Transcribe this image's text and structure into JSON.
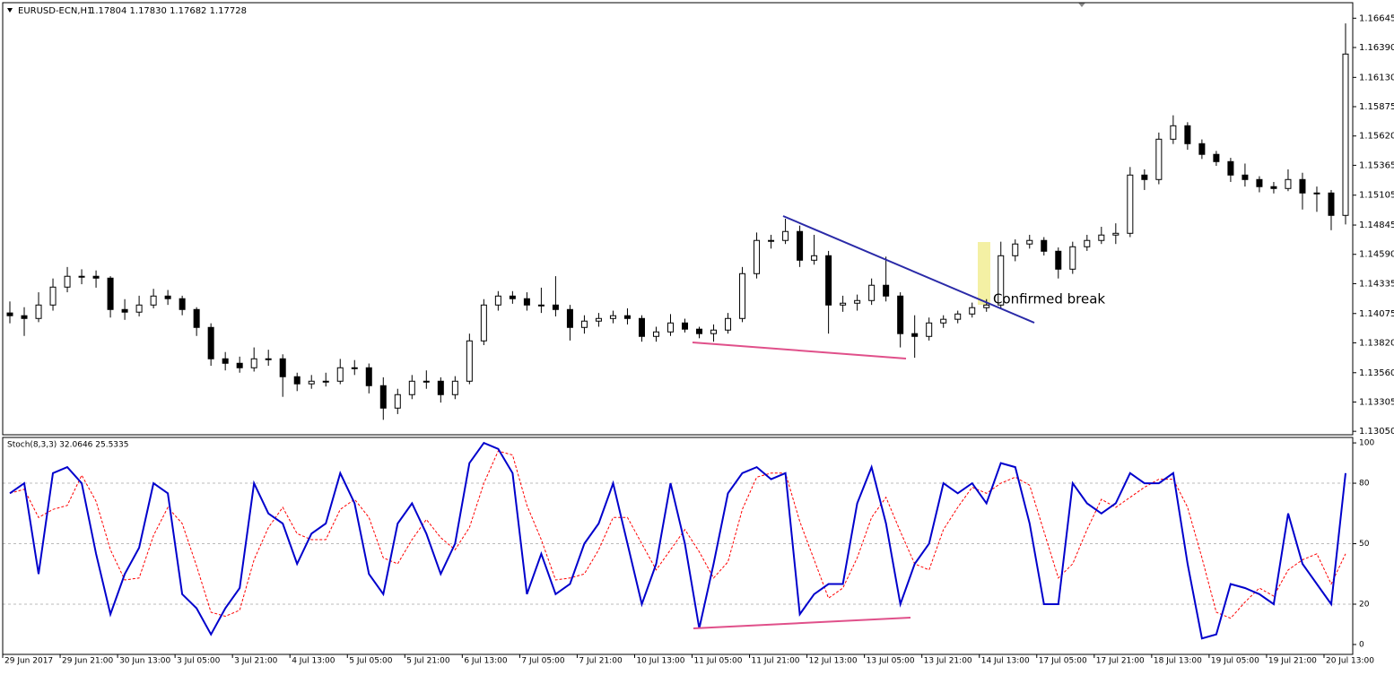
{
  "chart_data": [
    {
      "type": "candlestick",
      "title": "EURUSD-ECN,H1",
      "subtitle": "1.17804 1.17830 1.17682 1.17728",
      "annotation": "Confirmed break",
      "xlim": [
        0,
        94
      ],
      "ylim": [
        1.1302,
        1.1678
      ],
      "yticks": [
        1.16645,
        {
          "value": 1.1639,
          "label": "1.16390"
        },
        {
          "value": 1.1613,
          "label": "1.16130"
        },
        1.15875,
        {
          "value": 1.1562,
          "label": "1.15620"
        },
        1.15365,
        1.15105,
        1.14845,
        {
          "value": 1.1459,
          "label": "1.14590"
        },
        1.14335,
        1.14075,
        {
          "value": 1.1382,
          "label": "1.13820"
        },
        {
          "value": 1.1356,
          "label": "1.13560"
        },
        1.13305,
        {
          "value": 1.1305,
          "label": "1.13050"
        }
      ],
      "up_color": "#ffffff",
      "down_color": "#000000",
      "color": "#000000",
      "ohlc": [
        [
          1.1408,
          1.1418,
          1.1399,
          1.14056
        ],
        [
          1.14056,
          1.1413,
          1.1388,
          1.14032
        ],
        [
          1.14032,
          1.1426,
          1.14,
          1.14149
        ],
        [
          1.14149,
          1.1438,
          1.141,
          1.14305
        ],
        [
          1.14305,
          1.1448,
          1.1426,
          1.14399
        ],
        [
          1.14399,
          1.1446,
          1.1433,
          1.14399
        ],
        [
          1.14399,
          1.1445,
          1.143,
          1.14383
        ],
        [
          1.14383,
          1.144,
          1.1404,
          1.1411
        ],
        [
          1.1411,
          1.142,
          1.1402,
          1.14087
        ],
        [
          1.14087,
          1.1423,
          1.1405,
          1.14149
        ],
        [
          1.14149,
          1.1429,
          1.1412,
          1.14227
        ],
        [
          1.14227,
          1.1428,
          1.1415,
          1.14204
        ],
        [
          1.14204,
          1.1423,
          1.1406,
          1.1411
        ],
        [
          1.1411,
          1.1413,
          1.1388,
          1.13954
        ],
        [
          1.13954,
          1.1399,
          1.1362,
          1.13681
        ],
        [
          1.13681,
          1.1374,
          1.1358,
          1.13642
        ],
        [
          1.13642,
          1.137,
          1.1356,
          1.13603
        ],
        [
          1.13603,
          1.1378,
          1.1357,
          1.13681
        ],
        [
          1.13681,
          1.1376,
          1.1362,
          1.13681
        ],
        [
          1.13681,
          1.1372,
          1.1335,
          1.13525
        ],
        [
          1.13525,
          1.1356,
          1.134,
          1.13463
        ],
        [
          1.13463,
          1.1354,
          1.1342,
          1.13486
        ],
        [
          1.13486,
          1.1356,
          1.1344,
          1.13486
        ],
        [
          1.13486,
          1.1368,
          1.1346,
          1.13603
        ],
        [
          1.13603,
          1.1367,
          1.1354,
          1.13603
        ],
        [
          1.13603,
          1.1364,
          1.1338,
          1.13447
        ],
        [
          1.13447,
          1.1352,
          1.1315,
          1.13252
        ],
        [
          1.13252,
          1.1342,
          1.132,
          1.13369
        ],
        [
          1.13369,
          1.1354,
          1.1333,
          1.13486
        ],
        [
          1.13486,
          1.1358,
          1.1342,
          1.13486
        ],
        [
          1.13486,
          1.1352,
          1.133,
          1.13369
        ],
        [
          1.13369,
          1.1353,
          1.1333,
          1.13486
        ],
        [
          1.13486,
          1.139,
          1.1346,
          1.13837
        ],
        [
          1.13837,
          1.142,
          1.138,
          1.14149
        ],
        [
          1.14149,
          1.1427,
          1.141,
          1.14227
        ],
        [
          1.14227,
          1.1427,
          1.1416,
          1.14204
        ],
        [
          1.14204,
          1.1426,
          1.141,
          1.14149
        ],
        [
          1.14149,
          1.143,
          1.1408,
          1.14149
        ],
        [
          1.14149,
          1.144,
          1.1405,
          1.1411
        ],
        [
          1.1411,
          1.1415,
          1.1384,
          1.13954
        ],
        [
          1.13954,
          1.1406,
          1.139,
          1.14009
        ],
        [
          1.14009,
          1.1408,
          1.1396,
          1.14032
        ],
        [
          1.14032,
          1.141,
          1.1399,
          1.14056
        ],
        [
          1.14056,
          1.1412,
          1.1398,
          1.14032
        ],
        [
          1.14032,
          1.1406,
          1.1383,
          1.13876
        ],
        [
          1.13876,
          1.1396,
          1.1383,
          1.13915
        ],
        [
          1.13915,
          1.1407,
          1.1388,
          1.13993
        ],
        [
          1.13993,
          1.1403,
          1.1391,
          1.13939
        ],
        [
          1.13939,
          1.1396,
          1.1386,
          1.139
        ],
        [
          1.139,
          1.1398,
          1.1383,
          1.13931
        ],
        [
          1.13931,
          1.1408,
          1.139,
          1.14032
        ],
        [
          1.14032,
          1.1448,
          1.14,
          1.14422
        ],
        [
          1.14422,
          1.1478,
          1.1438,
          1.14711
        ],
        [
          1.14711,
          1.1476,
          1.1464,
          1.14711
        ],
        [
          1.14711,
          1.149,
          1.1468,
          1.14789
        ],
        [
          1.14789,
          1.1484,
          1.1448,
          1.14539
        ],
        [
          1.14539,
          1.1476,
          1.145,
          1.14578
        ],
        [
          1.14578,
          1.1462,
          1.139,
          1.14149
        ],
        [
          1.14149,
          1.1423,
          1.1409,
          1.14165
        ],
        [
          1.14165,
          1.1424,
          1.141,
          1.14188
        ],
        [
          1.14188,
          1.1438,
          1.1415,
          1.14321
        ],
        [
          1.14321,
          1.1457,
          1.1418,
          1.14227
        ],
        [
          1.14227,
          1.1426,
          1.1378,
          1.139
        ],
        [
          1.139,
          1.1406,
          1.1369,
          1.13876
        ],
        [
          1.13876,
          1.1404,
          1.1384,
          1.13993
        ],
        [
          1.13993,
          1.1406,
          1.1395,
          1.14025
        ],
        [
          1.14025,
          1.141,
          1.1399,
          1.14071
        ],
        [
          1.14071,
          1.1417,
          1.1404,
          1.14126
        ],
        [
          1.14126,
          1.142,
          1.1409,
          1.14149
        ],
        [
          1.14149,
          1.147,
          1.1412,
          1.14578
        ],
        [
          1.14578,
          1.1472,
          1.1453,
          1.1468
        ],
        [
          1.1468,
          1.1476,
          1.1464,
          1.14711
        ],
        [
          1.14711,
          1.1474,
          1.1458,
          1.14617
        ],
        [
          1.14617,
          1.1465,
          1.1438,
          1.14461
        ],
        [
          1.14461,
          1.147,
          1.1442,
          1.14656
        ],
        [
          1.14656,
          1.1476,
          1.1462,
          1.14711
        ],
        [
          1.14711,
          1.1483,
          1.1468,
          1.14758
        ],
        [
          1.14758,
          1.1486,
          1.1468,
          1.14773
        ],
        [
          1.14773,
          1.1535,
          1.1474,
          1.1528
        ],
        [
          1.1528,
          1.1533,
          1.1515,
          1.15241
        ],
        [
          1.15241,
          1.1565,
          1.152,
          1.15592
        ],
        [
          1.15592,
          1.158,
          1.1555,
          1.15709
        ],
        [
          1.15709,
          1.1574,
          1.155,
          1.15553
        ],
        [
          1.15553,
          1.1559,
          1.1542,
          1.1546
        ],
        [
          1.1546,
          1.1549,
          1.1536,
          1.15397
        ],
        [
          1.15397,
          1.1543,
          1.1522,
          1.1528
        ],
        [
          1.1528,
          1.1538,
          1.1518,
          1.15241
        ],
        [
          1.15241,
          1.1527,
          1.1513,
          1.15179
        ],
        [
          1.15179,
          1.1522,
          1.1512,
          1.15163
        ],
        [
          1.15163,
          1.1533,
          1.1514,
          1.15241
        ],
        [
          1.15241,
          1.153,
          1.1498,
          1.15124
        ],
        [
          1.15124,
          1.1518,
          1.1496,
          1.15124
        ],
        [
          1.15124,
          1.1515,
          1.148,
          1.14929
        ],
        [
          1.14929,
          1.166,
          1.1485,
          1.16333
        ]
      ]
    },
    {
      "type": "line",
      "title": "Stoch(8,3,3) 32.0646 25.5335",
      "xlim": [
        0,
        94
      ],
      "ylim": [
        -4.9,
        102.7
      ],
      "yticks": [
        100,
        80,
        50,
        20,
        0
      ],
      "levels": [
        80,
        50,
        20
      ],
      "xticks": [
        {
          "value": 0,
          "label": "29 Jun 2017"
        },
        {
          "value": 4,
          "label": "29 Jun 21:00"
        },
        {
          "value": 8,
          "label": "30 Jun 13:00"
        },
        {
          "value": 12,
          "label": "3 Jul 05:00"
        },
        {
          "value": 16,
          "label": "3 Jul 21:00"
        },
        {
          "value": 20,
          "label": "4 Jul 13:00"
        },
        {
          "value": 24,
          "label": "5 Jul 05:00"
        },
        {
          "value": 28,
          "label": "5 Jul 21:00"
        },
        {
          "value": 32,
          "label": "6 Jul 13:00"
        },
        {
          "value": 36,
          "label": "7 Jul 05:00"
        },
        {
          "value": 40,
          "label": "7 Jul 21:00"
        },
        {
          "value": 44,
          "label": "10 Jul 13:00"
        },
        {
          "value": 48,
          "label": "11 Jul 05:00"
        },
        {
          "value": 52,
          "label": "11 Jul 21:00"
        },
        {
          "value": 56,
          "label": "12 Jul 13:00"
        },
        {
          "value": 60,
          "label": "13 Jul 05:00"
        },
        {
          "value": 64,
          "label": "13 Jul 21:00"
        },
        {
          "value": 68,
          "label": "14 Jul 13:00"
        },
        {
          "value": 72,
          "label": "17 Jul 05:00"
        },
        {
          "value": 76,
          "label": "17 Jul 21:00"
        },
        {
          "value": 80,
          "label": "18 Jul 13:00"
        },
        {
          "value": 84,
          "label": "19 Jul 05:00"
        },
        {
          "value": 88,
          "label": "19 Jul 21:00"
        },
        {
          "value": 92,
          "label": "20 Jul 13:00"
        }
      ],
      "series": [
        {
          "color": "#0000cc",
          "style": "solid",
          "values": [
            75,
            80,
            35,
            85,
            88,
            80,
            45,
            15,
            35,
            48,
            80,
            75,
            25,
            18,
            5,
            18,
            28,
            80,
            65,
            60,
            40,
            55,
            60,
            85,
            70,
            35,
            25,
            60,
            70,
            55,
            35,
            50,
            90,
            100,
            97,
            85,
            25,
            45,
            25,
            30,
            50,
            60,
            80,
            50,
            20,
            40,
            80,
            50,
            8,
            40,
            75,
            85,
            88,
            82,
            85,
            15,
            25,
            30,
            30,
            70,
            88,
            60,
            20,
            40,
            50,
            80,
            75,
            80,
            70,
            90,
            88,
            60,
            20,
            20,
            80,
            70,
            65,
            70,
            85,
            80,
            80,
            85,
            40,
            3,
            5,
            30,
            28,
            25,
            20,
            65,
            40,
            30,
            20,
            85
          ]
        },
        {
          "color": "#ff0000",
          "style": "dashed",
          "values": [
            75,
            77,
            63,
            67,
            69,
            84,
            71,
            47,
            32,
            33,
            54,
            68,
            60,
            39,
            16,
            14,
            17,
            42,
            58,
            68,
            55,
            52,
            52,
            67,
            72,
            63,
            43,
            40,
            52,
            62,
            53,
            47,
            58,
            80,
            96,
            94,
            69,
            52,
            32,
            33,
            35,
            47,
            63,
            63,
            50,
            37,
            47,
            57,
            46,
            33,
            41,
            67,
            83,
            85,
            85,
            61,
            42,
            23,
            28,
            43,
            63,
            73,
            56,
            40,
            37,
            57,
            68,
            78,
            75,
            80,
            83,
            79,
            56,
            33,
            40,
            57,
            72,
            68,
            73,
            78,
            82,
            82,
            68,
            43,
            16,
            13,
            21,
            28,
            24,
            37,
            42,
            45,
            30,
            45
          ]
        }
      ]
    }
  ]
}
